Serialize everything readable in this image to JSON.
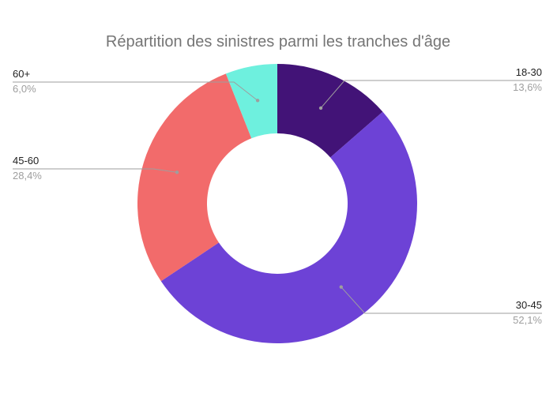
{
  "chart_data": {
    "type": "pie",
    "donut": true,
    "title": "Répartition des sinistres parmi les tranches d'âge",
    "start_angle_deg": 0,
    "direction": "clockwise",
    "slices": [
      {
        "label": "18-30",
        "value": 13.6,
        "value_label": "13,6%",
        "color": "#421377",
        "label_side": "right"
      },
      {
        "label": "30-45",
        "value": 52.1,
        "value_label": "52,1%",
        "color": "#6d42d6",
        "label_side": "right"
      },
      {
        "label": "45-60",
        "value": 28.4,
        "value_label": "28,4%",
        "color": "#f26b6b",
        "label_side": "left"
      },
      {
        "label": "60+",
        "value": 6.0,
        "value_label": "6,0%",
        "color": "#6ef0de",
        "label_side": "left"
      }
    ],
    "legend": "none",
    "leader_line_color": "#9e9e9e"
  }
}
